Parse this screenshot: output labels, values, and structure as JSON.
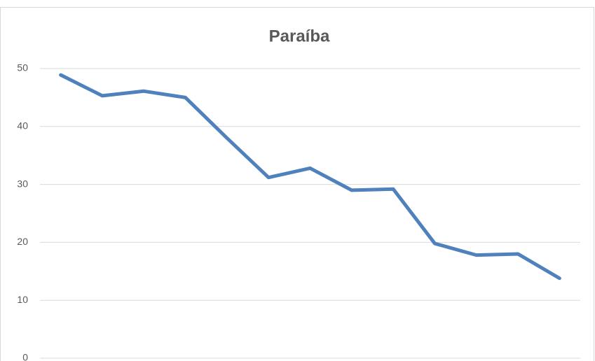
{
  "chart_data": {
    "type": "line",
    "title": "Paraíba",
    "categories": [
      null,
      null,
      null,
      null,
      null,
      null,
      null,
      null,
      null,
      null,
      null,
      null,
      null
    ],
    "values": [
      48.9,
      45.3,
      46.1,
      45.0,
      38.0,
      31.2,
      32.8,
      29.0,
      29.2,
      19.8,
      17.8,
      18.0,
      13.8
    ],
    "color": "#4f81bd",
    "ylim": [
      0,
      50
    ],
    "yticks": [
      0,
      10,
      20,
      30,
      40,
      50
    ],
    "grid": true
  }
}
